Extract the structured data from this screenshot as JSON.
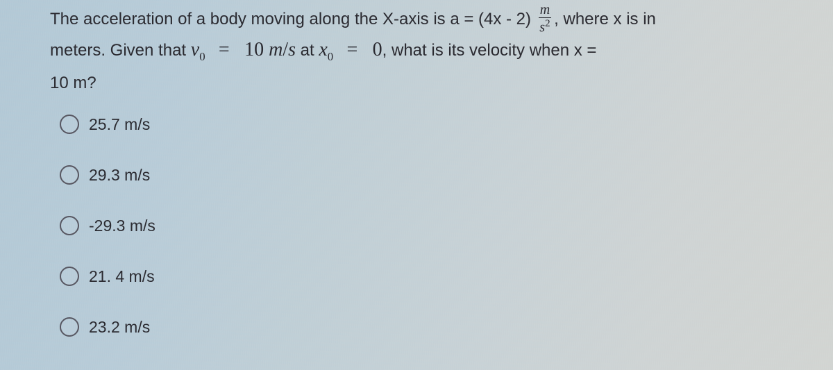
{
  "question": {
    "part1": "The acceleration of a body moving along the X-axis is a = (4x - 2) ",
    "frac": {
      "num": "m",
      "den": "s",
      "den_sup": "2"
    },
    "part2": ", where x is in",
    "line2a": "meters. Given that ",
    "v0_sym": "v",
    "v0_sub": "0",
    "eq1": "=",
    "v0_val": "10 ",
    "v0_units_m": "m",
    "v0_units_slash": "/",
    "v0_units_s": "s",
    "line2b": " at ",
    "x0_sym": "x",
    "x0_sub": "0",
    "eq2": "=",
    "x0_val": "0",
    "line2c": ", what is its velocity when x =",
    "line3": "10 m?"
  },
  "options": [
    {
      "label": "25.7 m/s"
    },
    {
      "label": "29.3 m/s"
    },
    {
      "label": "-29.3 m/s"
    },
    {
      "label": "21. 4 m/s"
    },
    {
      "label": "23.2 m/s"
    }
  ],
  "colors": {
    "text": "#2a2a30",
    "radio_border": "#565660",
    "bg_left": "#b3c9d6",
    "bg_right": "#d2d5d2"
  }
}
